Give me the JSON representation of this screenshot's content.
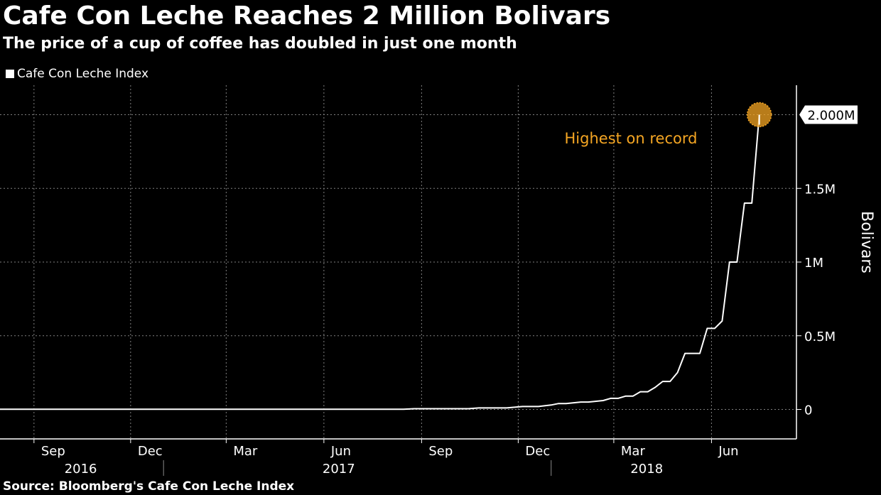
{
  "header": {
    "title": "Cafe Con Leche Reaches 2 Million Bolivars",
    "subtitle": "The price of a cup of coffee has doubled in just one month"
  },
  "footer": {
    "source": "Source: Bloomberg's Cafe Con Leche Index"
  },
  "colors": {
    "background": "#000000",
    "line": "#ffffff",
    "highlight": "#f5a623",
    "grid": "#808080"
  },
  "chart_data": {
    "type": "line",
    "title": "Cafe Con Leche Reaches 2 Million Bolivars",
    "subtitle": "The price of a cup of coffee has doubled in just one month",
    "ylabel": "Bolivars",
    "legend": {
      "placement": "top-left",
      "entries": [
        "Cafe Con Leche Index"
      ]
    },
    "grid": true,
    "xlim": [
      "2016-07-31",
      "2018-08-20"
    ],
    "ylim": [
      -200000,
      2200000
    ],
    "y_ticks": [
      {
        "value": 0,
        "label": "0"
      },
      {
        "value": 500000,
        "label": "0.5M"
      },
      {
        "value": 1000000,
        "label": "1M"
      },
      {
        "value": 1500000,
        "label": "1.5M"
      }
    ],
    "x_ticks": [
      {
        "date": "2016-09-01",
        "label": "Sep"
      },
      {
        "date": "2016-12-01",
        "label": "Dec"
      },
      {
        "date": "2017-03-01",
        "label": "Mar"
      },
      {
        "date": "2017-06-01",
        "label": "Jun"
      },
      {
        "date": "2017-09-01",
        "label": "Sep"
      },
      {
        "date": "2017-12-01",
        "label": "Dec"
      },
      {
        "date": "2018-03-01",
        "label": "Mar"
      },
      {
        "date": "2018-06-01",
        "label": "Jun"
      }
    ],
    "year_labels": [
      {
        "date": "2016-10-15",
        "label": "2016"
      },
      {
        "date": "2017-06-15",
        "label": "2017"
      },
      {
        "date": "2018-04-01",
        "label": "2018"
      }
    ],
    "year_dividers": [
      "2017-01-01",
      "2018-01-01"
    ],
    "series": [
      {
        "name": "Cafe Con Leche Index",
        "x": [
          "2016-07-31",
          "2017-08-15",
          "2017-08-25",
          "2017-10-15",
          "2017-10-25",
          "2017-11-20",
          "2017-12-05",
          "2017-12-20",
          "2018-01-01",
          "2018-01-08",
          "2018-01-15",
          "2018-01-29",
          "2018-02-05",
          "2018-02-19",
          "2018-02-26",
          "2018-03-05",
          "2018-03-12",
          "2018-03-19",
          "2018-03-26",
          "2018-04-02",
          "2018-04-09",
          "2018-04-16",
          "2018-04-23",
          "2018-04-30",
          "2018-05-07",
          "2018-05-14",
          "2018-05-21",
          "2018-05-28",
          "2018-06-04",
          "2018-06-11",
          "2018-06-18",
          "2018-06-25",
          "2018-07-02",
          "2018-07-09",
          "2018-07-16"
        ],
        "values": [
          1000,
          1000,
          5000,
          5000,
          10000,
          10000,
          20000,
          20000,
          30000,
          40000,
          40000,
          50000,
          50000,
          60000,
          75000,
          75000,
          90000,
          90000,
          120000,
          120000,
          150000,
          190000,
          190000,
          250000,
          380000,
          380000,
          380000,
          550000,
          550000,
          600000,
          1000000,
          1000000,
          1400000,
          1400000,
          2000000
        ]
      }
    ],
    "annotations": [
      {
        "date": "2018-07-16",
        "value": 2000000,
        "label": "Highest on record",
        "value_label": "2.000M"
      }
    ]
  }
}
